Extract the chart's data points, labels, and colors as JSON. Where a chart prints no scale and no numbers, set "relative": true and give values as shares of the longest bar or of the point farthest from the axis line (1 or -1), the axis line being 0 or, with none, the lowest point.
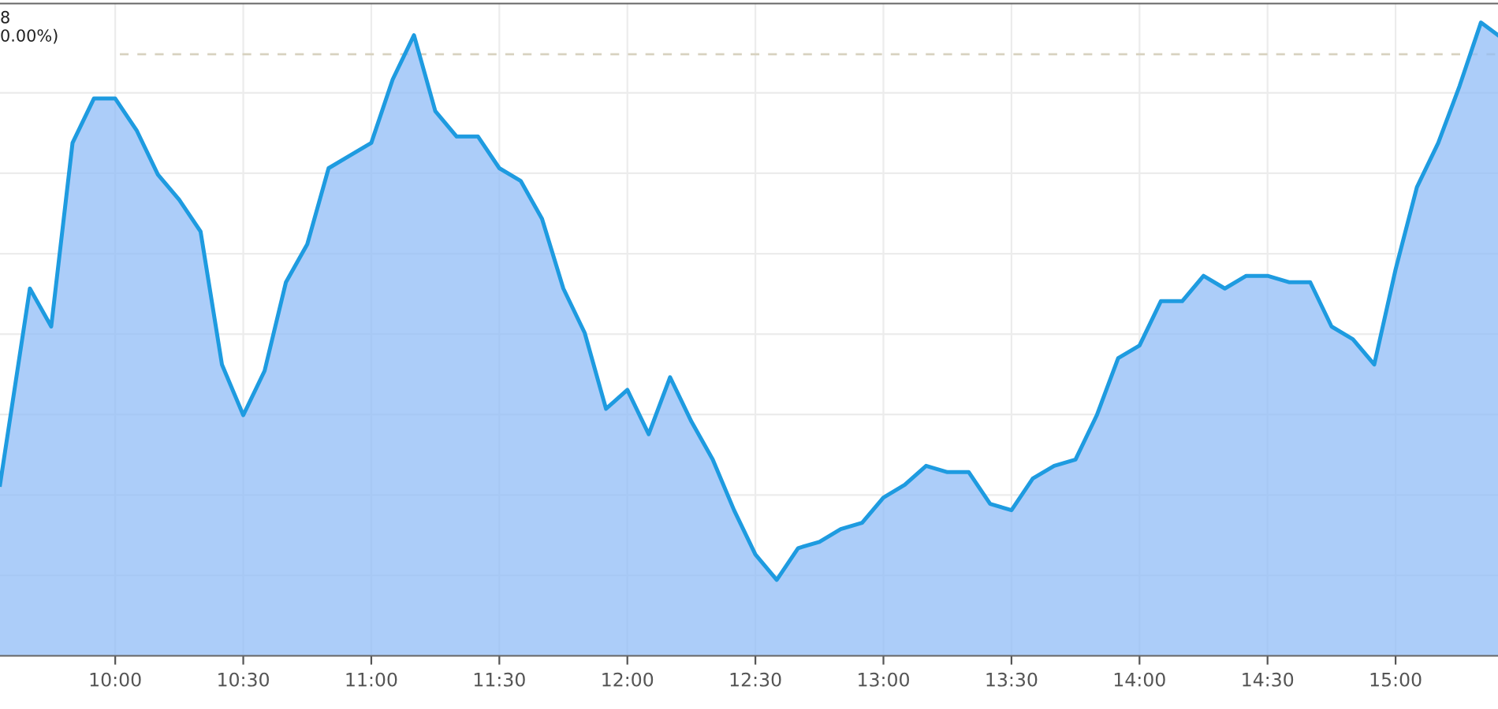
{
  "chart_data": {
    "type": "area",
    "relative": true,
    "x": [
      9.55,
      9.6667,
      9.75,
      9.8333,
      9.9167,
      10,
      10.0833,
      10.1667,
      10.25,
      10.3333,
      10.4167,
      10.5,
      10.5833,
      10.6667,
      10.75,
      10.8333,
      10.9167,
      11,
      11.0833,
      11.1667,
      11.25,
      11.3333,
      11.4167,
      11.5,
      11.5833,
      11.6667,
      11.75,
      11.8333,
      11.9167,
      12,
      12.0833,
      12.1667,
      12.25,
      12.3333,
      12.4167,
      12.5,
      12.5833,
      12.6667,
      12.75,
      12.8333,
      12.9167,
      13,
      13.0833,
      13.1667,
      13.25,
      13.3333,
      13.4167,
      13.5,
      13.5833,
      13.6667,
      13.75,
      13.8333,
      13.9167,
      14,
      14.0833,
      14.1667,
      14.25,
      14.3333,
      14.4167,
      14.5,
      14.5833,
      14.6667,
      14.75,
      14.8333,
      14.9167,
      15,
      15.0833,
      15.1667,
      15.25,
      15.3333,
      15.4
    ],
    "series": [
      {
        "color": "#1e9be0",
        "values": [
          0.27,
          0.58,
          0.52,
          0.81,
          0.88,
          0.88,
          0.83,
          0.76,
          0.72,
          0.67,
          0.46,
          0.38,
          0.45,
          0.59,
          0.65,
          0.77,
          0.79,
          0.81,
          0.91,
          0.98,
          0.86,
          0.82,
          0.82,
          0.77,
          0.75,
          0.69,
          0.58,
          0.51,
          0.39,
          0.42,
          0.35,
          0.44,
          0.37,
          0.31,
          0.23,
          0.16,
          0.12,
          0.17,
          0.18,
          0.2,
          0.21,
          0.25,
          0.27,
          0.3,
          0.29,
          0.29,
          0.24,
          0.23,
          0.28,
          0.3,
          0.31,
          0.38,
          0.47,
          0.49,
          0.56,
          0.56,
          0.6,
          0.58,
          0.6,
          0.6,
          0.59,
          0.59,
          0.52,
          0.5,
          0.46,
          0.61,
          0.74,
          0.81,
          0.9,
          1,
          0.98
        ]
      }
    ],
    "xlim": [
      9.55,
      15.4
    ],
    "xticks": [
      {
        "value": 10,
        "label": "10:00"
      },
      {
        "value": 10.5,
        "label": "10:30"
      },
      {
        "value": 11,
        "label": "11:00"
      },
      {
        "value": 11.5,
        "label": "11:30"
      },
      {
        "value": 12,
        "label": "12:00"
      },
      {
        "value": 12.5,
        "label": "12:30"
      },
      {
        "value": 13,
        "label": "13:00"
      },
      {
        "value": 13.5,
        "label": "13:30"
      },
      {
        "value": 14,
        "label": "14:00"
      },
      {
        "value": 14.5,
        "label": "14:30"
      },
      {
        "value": 15,
        "label": "15:00"
      }
    ],
    "tick_labels": "x",
    "grid": true,
    "annotations": [
      "8\n0.00%)"
    ],
    "ref_lines": [
      {
        "axis": "y",
        "value": 0.95,
        "color": "#d8d2c0",
        "line_style": "dashed"
      }
    ]
  }
}
